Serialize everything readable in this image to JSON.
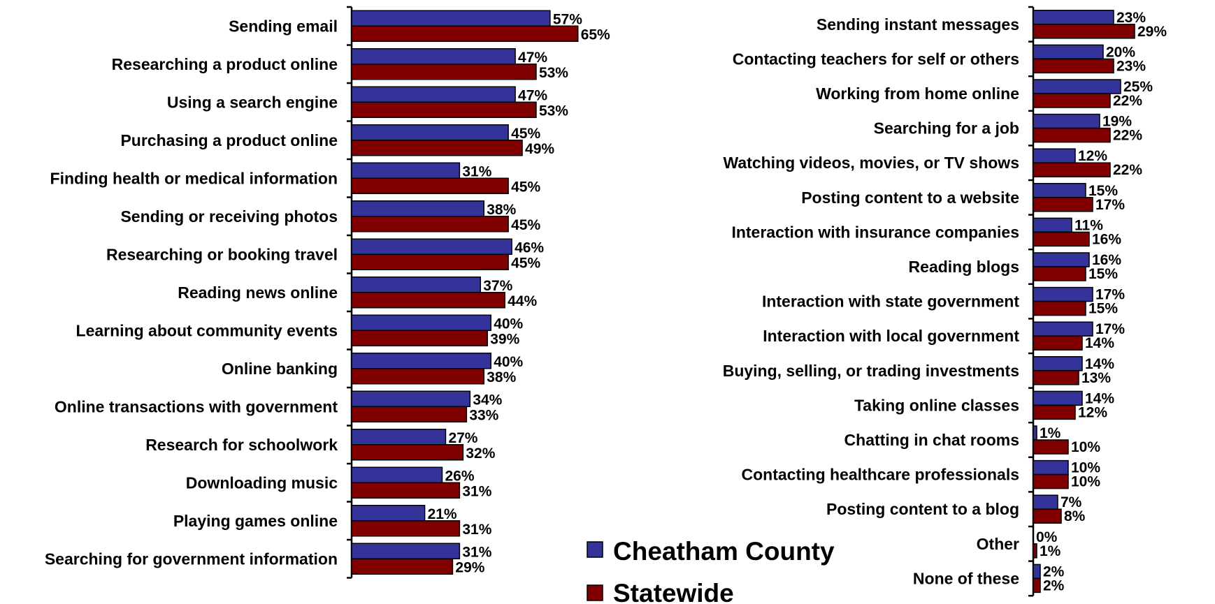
{
  "chart_data": [
    {
      "type": "bar",
      "orientation": "horizontal",
      "categories": [
        "Sending email",
        "Researching a product online",
        "Using a search engine",
        "Purchasing a product online",
        "Finding health or medical information",
        "Sending or receiving photos",
        "Researching or booking travel",
        "Reading news online",
        "Learning about community events",
        "Online banking",
        "Online transactions with government",
        "Research for schoolwork",
        "Downloading music",
        "Playing games online",
        "Searching for government information"
      ],
      "series": [
        {
          "name": "Cheatham County",
          "values": [
            57,
            47,
            47,
            45,
            31,
            38,
            46,
            37,
            40,
            40,
            34,
            27,
            26,
            21,
            31
          ],
          "labels": [
            "57%",
            "47%",
            "47%",
            "45%",
            "31%",
            "38%",
            "46%",
            "37%",
            "40%",
            "40%",
            "34%",
            "27%",
            "26%",
            "21%",
            "31%"
          ]
        },
        {
          "name": "Statewide",
          "values": [
            65,
            53,
            53,
            49,
            45,
            45,
            45,
            44,
            39,
            38,
            33,
            32,
            31,
            31,
            29
          ],
          "labels": [
            "65%",
            "53%",
            "53%",
            "49%",
            "45%",
            "45%",
            "45%",
            "44%",
            "39%",
            "38%",
            "33%",
            "32%",
            "31%",
            "31%",
            "29%"
          ]
        }
      ],
      "xlim": [
        0,
        100
      ]
    },
    {
      "type": "bar",
      "orientation": "horizontal",
      "categories": [
        "Sending instant messages",
        "Contacting teachers for self or others",
        "Working from home online",
        "Searching for a job",
        "Watching videos, movies, or TV shows",
        "Posting content to a website",
        "Interaction with insurance companies",
        "Reading blogs",
        "Interaction with state government",
        "Interaction with local government",
        "Buying, selling, or trading investments",
        "Taking online classes",
        "Chatting in chat rooms",
        "Contacting healthcare professionals",
        "Posting content to a blog",
        "Other",
        "None of these"
      ],
      "series": [
        {
          "name": "Cheatham County",
          "values": [
            23,
            20,
            25,
            19,
            12,
            15,
            11,
            16,
            17,
            17,
            14,
            14,
            1,
            10,
            7,
            0,
            2
          ],
          "labels": [
            "23%",
            "20%",
            "25%",
            "19%",
            "12%",
            "15%",
            "11%",
            "16%",
            "17%",
            "17%",
            "14%",
            "14%",
            "1%",
            "10%",
            "7%",
            "0%",
            "2%"
          ]
        },
        {
          "name": "Statewide",
          "values": [
            29,
            23,
            22,
            22,
            22,
            17,
            16,
            15,
            15,
            14,
            13,
            12,
            10,
            10,
            8,
            1,
            2
          ],
          "labels": [
            "29%",
            "23%",
            "22%",
            "22%",
            "22%",
            "17%",
            "16%",
            "15%",
            "15%",
            "14%",
            "13%",
            "12%",
            "10%",
            "10%",
            "8%",
            "1%",
            "2%"
          ]
        }
      ],
      "xlim": [
        0,
        30
      ]
    }
  ],
  "legend": {
    "entries": [
      {
        "label": "Cheatham County",
        "color": "#333399"
      },
      {
        "label": "Statewide",
        "color": "#800000"
      }
    ],
    "placement": "bottom-center"
  },
  "colors": {
    "series1": "#333399",
    "series2": "#800000"
  }
}
